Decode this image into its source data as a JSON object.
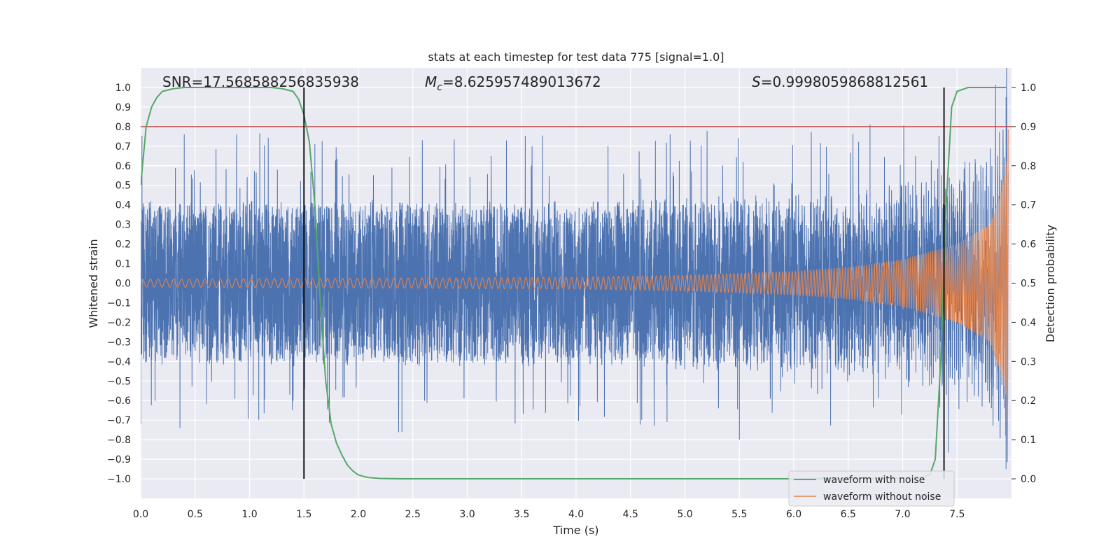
{
  "chart_data": {
    "type": "line",
    "title": "stats at each timestep for test data 775 [signal=1.0]",
    "xlabel": "Time (s)",
    "ylabel": "Whitened strain",
    "y2label": "Detection probability",
    "xlim": [
      0.0,
      8.0
    ],
    "ylim": [
      -1.1,
      1.1
    ],
    "y2lim": [
      -0.05,
      1.05
    ],
    "xticks": [
      "0.0",
      "0.5",
      "1.0",
      "1.5",
      "2.0",
      "2.5",
      "3.0",
      "3.5",
      "4.0",
      "4.5",
      "5.0",
      "5.5",
      "6.0",
      "6.5",
      "7.0",
      "7.5"
    ],
    "yticks": [
      "-1.0",
      "-0.9",
      "-0.8",
      "-0.7",
      "-0.6",
      "-0.5",
      "-0.4",
      "-0.3",
      "-0.2",
      "-0.1",
      "0.0",
      "0.1",
      "0.2",
      "0.3",
      "0.4",
      "0.5",
      "0.6",
      "0.7",
      "0.8",
      "0.9",
      "1.0"
    ],
    "y2ticks": [
      "0.0",
      "0.1",
      "0.2",
      "0.3",
      "0.4",
      "0.5",
      "0.6",
      "0.7",
      "0.8",
      "0.9",
      "1.0"
    ],
    "grid": true,
    "annotations": {
      "snr": "SNR=17.568588256835938",
      "mc_symbol": "M",
      "mc_sub": "c",
      "mc_value": "=8.625957489013672",
      "s_symbol": "S",
      "s_value": "=0.9998059868812561"
    },
    "threshold": {
      "axis": "y2",
      "value": 0.9,
      "color": "#c44e52"
    },
    "vlines": [
      1.5,
      7.38
    ],
    "series": [
      {
        "name": "waveform with noise",
        "color": "#4c72b0",
        "axis": "y",
        "description": "noisy whitened strain, envelope approximately +/-0.5 with peaks to about 0.8",
        "envelope": [
          [
            0.0,
            0.45
          ],
          [
            1.0,
            0.45
          ],
          [
            2.0,
            0.45
          ],
          [
            3.0,
            0.45
          ],
          [
            4.0,
            0.45
          ],
          [
            5.0,
            0.45
          ],
          [
            6.0,
            0.45
          ],
          [
            7.0,
            0.45
          ],
          [
            7.5,
            0.45
          ],
          [
            7.9,
            0.5
          ],
          [
            7.95,
            0.5
          ]
        ],
        "peaks": [
          [
            0.4,
            0.76
          ],
          [
            1.6,
            0.71
          ],
          [
            6.7,
            0.81
          ],
          [
            0.0,
            -0.72
          ],
          [
            2.4,
            -0.76
          ],
          [
            5.5,
            -0.8
          ],
          [
            7.95,
            -0.95
          ],
          [
            7.95,
            0.95
          ]
        ]
      },
      {
        "name": "waveform without noise",
        "color": "#dd8452",
        "axis": "y",
        "description": "chirp signal with growing amplitude",
        "amplitude": [
          [
            0.0,
            0.02
          ],
          [
            2.0,
            0.025
          ],
          [
            4.0,
            0.03
          ],
          [
            5.0,
            0.04
          ],
          [
            6.0,
            0.06
          ],
          [
            6.5,
            0.08
          ],
          [
            7.0,
            0.12
          ],
          [
            7.5,
            0.2
          ],
          [
            7.8,
            0.3
          ],
          [
            7.9,
            0.45
          ],
          [
            7.95,
            0.58
          ],
          [
            7.97,
            0.8
          ]
        ]
      },
      {
        "name": "detection probability",
        "color": "#55a868",
        "axis": "y2",
        "x": [
          0.0,
          0.05,
          0.1,
          0.15,
          0.2,
          0.3,
          0.4,
          0.6,
          0.8,
          1.0,
          1.2,
          1.3,
          1.4,
          1.45,
          1.5,
          1.55,
          1.6,
          1.65,
          1.7,
          1.75,
          1.8,
          1.85,
          1.9,
          1.95,
          2.0,
          2.05,
          2.1,
          2.2,
          2.4,
          3.0,
          4.0,
          5.0,
          6.0,
          6.5,
          7.0,
          7.2,
          7.25,
          7.3,
          7.35,
          7.4,
          7.45,
          7.5,
          7.6,
          7.7,
          7.8,
          7.95
        ],
        "y": [
          0.75,
          0.9,
          0.95,
          0.975,
          0.99,
          0.997,
          1.0,
          1.0,
          1.0,
          1.0,
          1.0,
          0.997,
          0.99,
          0.97,
          0.93,
          0.86,
          0.7,
          0.45,
          0.25,
          0.14,
          0.09,
          0.06,
          0.035,
          0.02,
          0.01,
          0.006,
          0.003,
          0.001,
          0.0,
          0.0,
          0.0,
          0.0,
          0.0,
          0.001,
          0.002,
          0.005,
          0.01,
          0.05,
          0.3,
          0.7,
          0.95,
          0.99,
          1.0,
          1.0,
          1.0,
          1.0
        ]
      }
    ],
    "legend": {
      "placement": "lower-right",
      "entries": [
        {
          "label": "waveform with noise",
          "color": "#4c72b0"
        },
        {
          "label": "waveform without noise",
          "color": "#dd8452"
        }
      ]
    }
  }
}
